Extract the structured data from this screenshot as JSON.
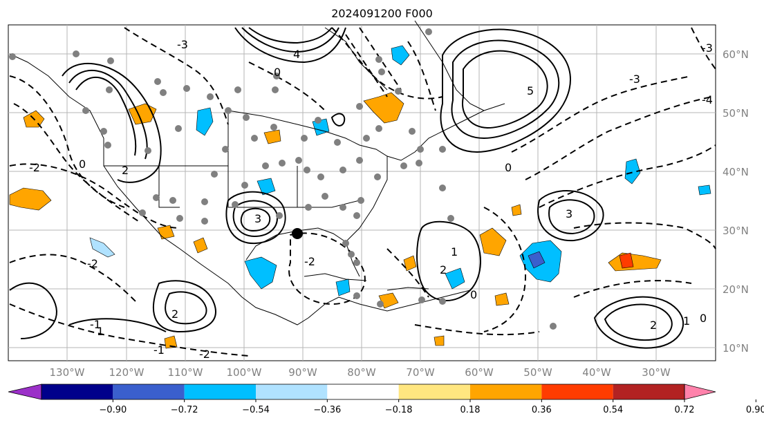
{
  "title": "2024091200 F000",
  "longitude_labels": [
    "130°W",
    "120°W",
    "110°W",
    "100°W",
    "90°W",
    "80°W",
    "70°W",
    "60°W",
    "50°W",
    "40°W",
    "30°W"
  ],
  "latitude_labels": [
    "60°N",
    "50°N",
    "40°N",
    "30°N",
    "20°N",
    "10°N"
  ],
  "colorbar": {
    "tick_labels": [
      "−0.90",
      "−0.72",
      "−0.54",
      "−0.36",
      "−0.18",
      "0.18",
      "0.36",
      "0.54",
      "0.72",
      "0.90"
    ],
    "colors": [
      "#9b30c8",
      "#00008b",
      "#3a5fcd",
      "#00bfff",
      "#b0e2ff",
      "#ffffff",
      "#ffe680",
      "#ffa500",
      "#ff3c00",
      "#b22222",
      "#ff82ab"
    ]
  },
  "contour_labels": [
    "-3",
    "-2",
    "-2",
    "-1",
    "-1",
    "0",
    "0",
    "0",
    "0",
    "1",
    "1",
    "2",
    "2",
    "-2",
    "3",
    "-3",
    "5",
    "4",
    "3",
    "-4",
    "-2",
    "-3",
    "2",
    "1",
    "0",
    "2"
  ]
}
